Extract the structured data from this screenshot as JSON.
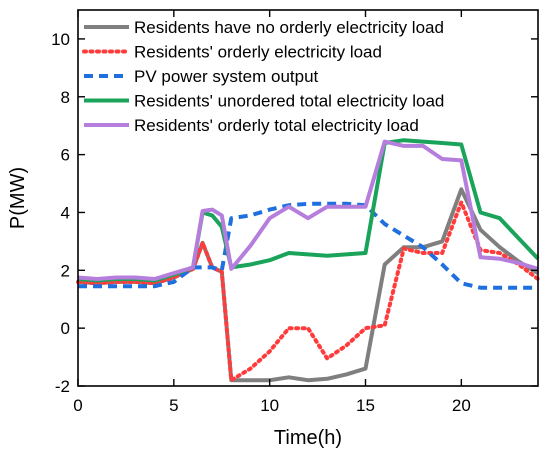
{
  "chart_data": {
    "type": "line",
    "title": "",
    "xlabel": "Time(h)",
    "ylabel": "P(MW)",
    "xlim": [
      0,
      24
    ],
    "ylim": [
      -2,
      11
    ],
    "xticks": [
      0,
      5,
      10,
      15,
      20
    ],
    "yticks": [
      -2,
      0,
      2,
      4,
      6,
      8,
      10
    ],
    "grid": false,
    "legend_position": "top-right",
    "x": [
      0,
      1,
      2,
      3,
      4,
      5,
      6,
      6.5,
      7,
      7.5,
      8,
      9,
      10,
      11,
      12,
      13,
      14,
      15,
      16,
      17,
      18,
      19,
      20,
      21,
      22,
      23,
      24
    ],
    "series": [
      {
        "name": "Residents have no orderly electricity load",
        "color": "#7f7f7f",
        "dash": "solid",
        "values": [
          1.6,
          1.55,
          1.6,
          1.6,
          1.55,
          1.75,
          2.05,
          2.95,
          2.1,
          1.95,
          -1.8,
          -1.8,
          -1.8,
          -1.7,
          -1.8,
          -1.75,
          -1.6,
          -1.4,
          2.2,
          2.8,
          2.8,
          3.0,
          4.8,
          3.4,
          2.8,
          2.3,
          1.9
        ]
      },
      {
        "name": "Residents' orderly electricity load",
        "color": "#ff3b3b",
        "dash": "dotted",
        "values": [
          1.6,
          1.55,
          1.6,
          1.6,
          1.55,
          1.75,
          2.05,
          2.95,
          2.1,
          1.95,
          -1.8,
          -1.4,
          -0.8,
          0.0,
          0.0,
          -1.05,
          -0.6,
          0.0,
          0.1,
          2.75,
          2.6,
          2.6,
          4.35,
          2.7,
          2.6,
          2.2,
          1.7
        ]
      },
      {
        "name": "PV power system output",
        "color": "#1f6fdf",
        "dash": "dashed",
        "values": [
          1.45,
          1.45,
          1.45,
          1.45,
          1.45,
          1.6,
          2.1,
          2.1,
          2.1,
          2.0,
          3.8,
          3.9,
          4.1,
          4.25,
          4.3,
          4.3,
          4.3,
          4.25,
          3.6,
          3.2,
          2.8,
          2.2,
          1.55,
          1.4,
          1.4,
          1.4,
          1.4
        ]
      },
      {
        "name": "Residents' unordered total electricity load",
        "color": "#1aa35a",
        "dash": "solid",
        "values": [
          1.7,
          1.65,
          1.7,
          1.7,
          1.65,
          1.85,
          2.1,
          4.0,
          3.9,
          3.5,
          2.1,
          2.2,
          2.35,
          2.6,
          2.55,
          2.5,
          2.55,
          2.6,
          6.4,
          6.5,
          6.45,
          6.4,
          6.35,
          4.0,
          3.8,
          3.1,
          2.4
        ]
      },
      {
        "name": "Residents' orderly total electricity load",
        "color": "#b57edc",
        "dash": "solid",
        "values": [
          1.75,
          1.7,
          1.75,
          1.75,
          1.7,
          1.9,
          2.1,
          4.05,
          4.1,
          3.9,
          2.05,
          2.85,
          3.8,
          4.2,
          3.8,
          4.2,
          4.2,
          4.2,
          6.45,
          6.3,
          6.3,
          5.85,
          5.8,
          2.45,
          2.4,
          2.25,
          2.05
        ]
      }
    ]
  }
}
